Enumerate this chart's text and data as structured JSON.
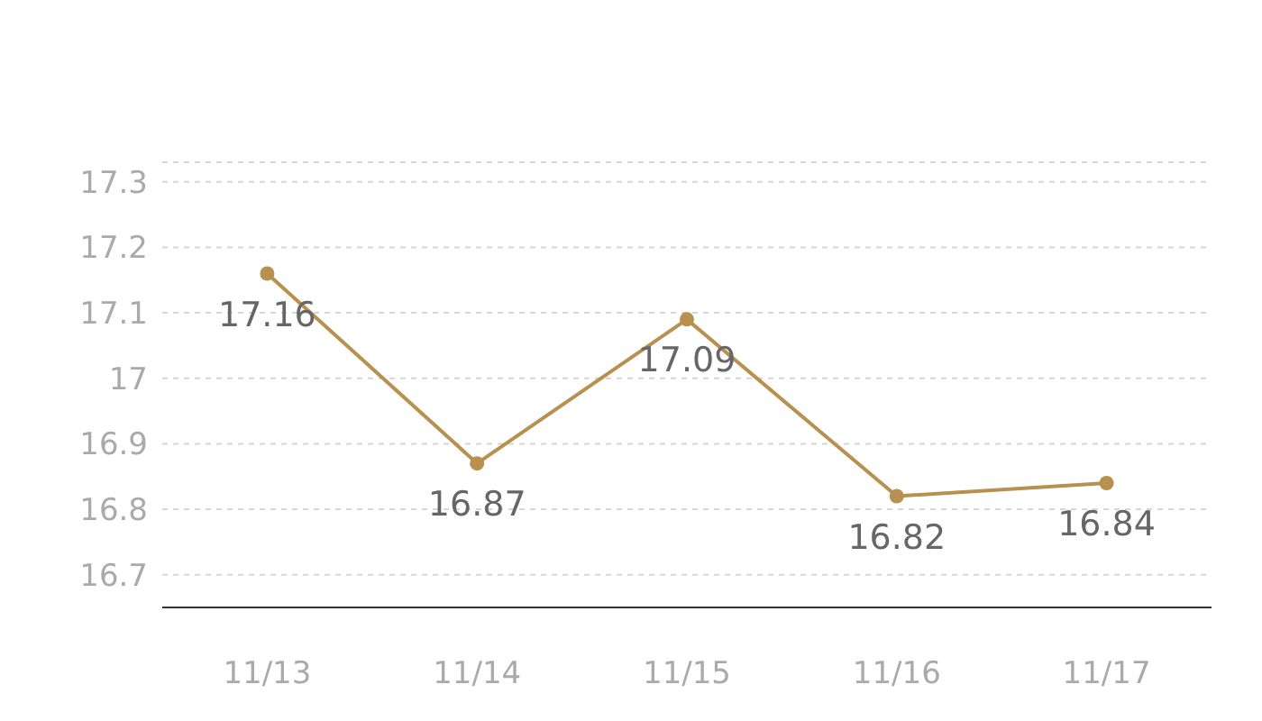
{
  "chart_data": {
    "type": "line",
    "categories": [
      "11/13",
      "11/14",
      "11/15",
      "11/16",
      "11/17"
    ],
    "series": [
      {
        "color": "#b8904f",
        "values": [
          17.16,
          16.87,
          17.09,
          16.82,
          16.84
        ]
      }
    ],
    "ylim": [
      16.65,
      17.33
    ],
    "yticks": [
      16.7,
      16.8,
      16.9,
      17,
      17.1,
      17.2,
      17.3
    ],
    "grid": "y",
    "marker": "circle",
    "data_labels": true
  }
}
